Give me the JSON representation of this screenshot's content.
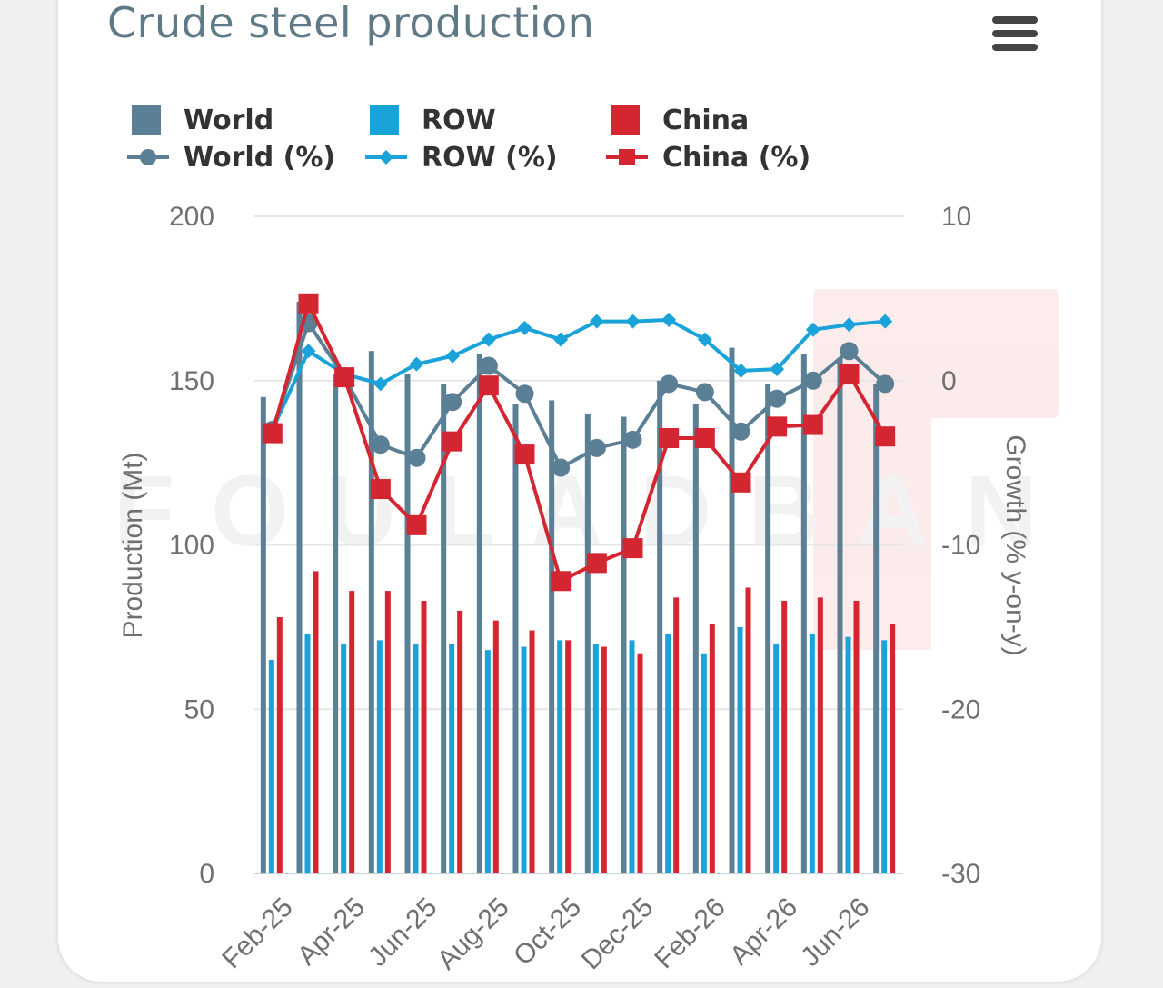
{
  "title": "Crude steel production",
  "menu_icon": "hamburger-menu-icon",
  "legend": [
    {
      "label": "World",
      "symbol": "square",
      "color": "#5b7f94"
    },
    {
      "label": "ROW",
      "symbol": "square",
      "color": "#1aa3d9"
    },
    {
      "label": "China",
      "symbol": "square",
      "color": "#d42630"
    },
    {
      "label": "World (%)",
      "symbol": "line-circle",
      "color": "#5b7f94"
    },
    {
      "label": "ROW (%)",
      "symbol": "line-diamond",
      "color": "#1aa3d9"
    },
    {
      "label": "China (%)",
      "symbol": "line-square",
      "color": "#d42630"
    }
  ],
  "watermark": "FOULADBAN",
  "chart_data": {
    "type": "bar",
    "title": "Crude steel production",
    "categories": [
      "Feb-25",
      "Mar-25",
      "Apr-25",
      "May-25",
      "Jun-25",
      "Jul-25",
      "Aug-25",
      "Sep-25",
      "Oct-25",
      "Nov-25",
      "Dec-25",
      "Jan-26",
      "Feb-26",
      "Mar-26",
      "Apr-26",
      "May-26",
      "Jun-26",
      "Jul-26"
    ],
    "x_tick_labels": [
      "Feb-25",
      "Apr-25",
      "Jun-25",
      "Aug-25",
      "Oct-25",
      "Dec-25",
      "Feb-26",
      "Apr-26",
      "Jun-26"
    ],
    "ylabel": "Production (Mt)",
    "y2label": "Growth (% y-on-y)",
    "ylim": [
      0,
      200
    ],
    "y_ticks": [
      "0",
      "50",
      "100",
      "150",
      "200"
    ],
    "y2lim": [
      -30,
      10
    ],
    "y2_ticks": [
      "-30",
      "-20",
      "-10",
      "0",
      "10"
    ],
    "grid": true,
    "legend_position": "top",
    "series": [
      {
        "name": "World",
        "type": "bar",
        "axis": "left",
        "color": "#5b7f94",
        "values": [
          145,
          174,
          152,
          159,
          152,
          149,
          158,
          143,
          144,
          140,
          139,
          150,
          143,
          160,
          149,
          158,
          157,
          149
        ]
      },
      {
        "name": "ROW",
        "type": "bar",
        "axis": "left",
        "color": "#1aa3d9",
        "values": [
          65,
          73,
          70,
          71,
          70,
          70,
          68,
          69,
          71,
          70,
          71,
          73,
          67,
          75,
          70,
          73,
          72,
          71
        ]
      },
      {
        "name": "China",
        "type": "bar",
        "axis": "left",
        "color": "#d42630",
        "values": [
          78,
          92,
          86,
          86,
          83,
          80,
          77,
          74,
          71,
          69,
          67,
          84,
          76,
          87,
          83,
          84,
          83,
          76
        ]
      },
      {
        "name": "World (%)",
        "type": "line",
        "axis": "right",
        "marker": "circle",
        "color": "#5b7f94",
        "values": [
          -3.0,
          3.5,
          0.2,
          -3.9,
          -4.7,
          -1.3,
          0.9,
          -0.8,
          -5.3,
          -4.1,
          -3.6,
          -0.2,
          -0.7,
          -3.1,
          -1.1,
          0.0,
          1.8,
          -0.2
        ]
      },
      {
        "name": "ROW (%)",
        "type": "line",
        "axis": "right",
        "marker": "diamond",
        "color": "#1aa3d9",
        "values": [
          -3.0,
          1.8,
          0.4,
          -0.2,
          1.0,
          1.5,
          2.5,
          3.2,
          2.5,
          3.6,
          3.6,
          3.7,
          2.5,
          0.6,
          0.7,
          3.1,
          3.4,
          3.6
        ]
      },
      {
        "name": "China (%)",
        "type": "line",
        "axis": "right",
        "marker": "square",
        "color": "#d42630",
        "values": [
          -3.2,
          4.7,
          0.2,
          -6.6,
          -8.8,
          -3.7,
          -0.3,
          -4.5,
          -12.2,
          -11.1,
          -10.2,
          -3.5,
          -3.5,
          -6.2,
          -2.8,
          -2.7,
          0.4,
          -3.4
        ]
      }
    ]
  }
}
